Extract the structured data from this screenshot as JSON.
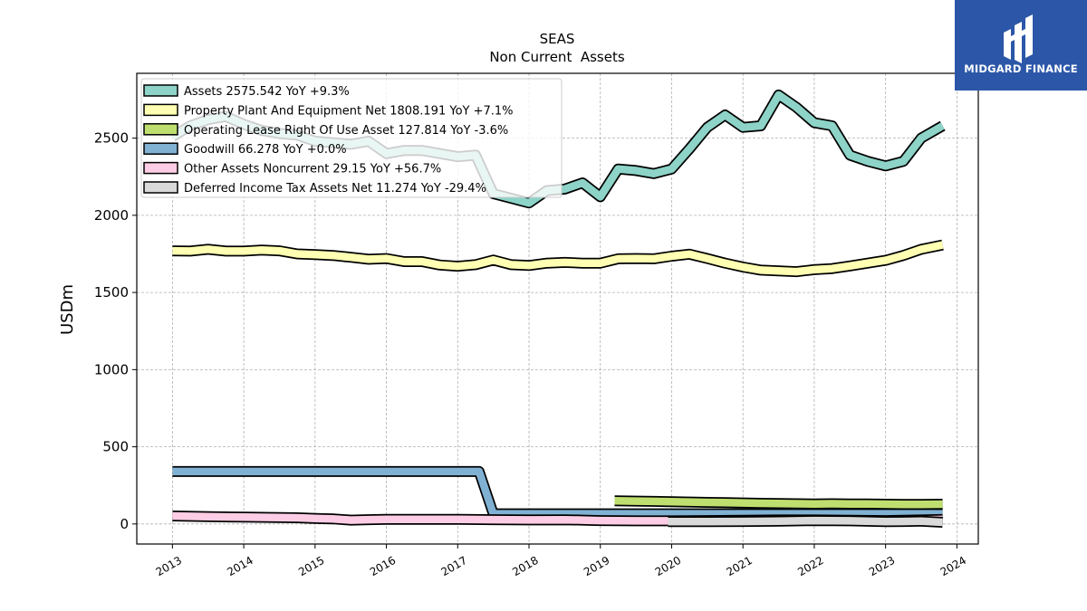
{
  "brand": {
    "name": "MIDGARD FINANCE",
    "color": "#2c57a8"
  },
  "chart_data": {
    "type": "line",
    "title": "SEAS",
    "subtitle": "Non Current  Assets",
    "ylabel": "USDm",
    "xlabel": "",
    "xlim": [
      2012.5,
      2024.3
    ],
    "ylim": [
      -130,
      2920
    ],
    "x_ticks": [
      2013,
      2014,
      2015,
      2016,
      2017,
      2018,
      2019,
      2020,
      2021,
      2022,
      2023,
      2024
    ],
    "y_ticks": [
      0,
      500,
      1000,
      1500,
      2000,
      2500
    ],
    "grid": true,
    "legend_position": "top-left",
    "series": [
      {
        "name": "Assets  2575.542 YoY +9.3%",
        "color": "#8dd3c7",
        "x": [
          2013.0,
          2013.25,
          2013.5,
          2013.75,
          2014.0,
          2014.25,
          2014.5,
          2014.75,
          2015.0,
          2015.25,
          2015.5,
          2015.75,
          2016.0,
          2016.25,
          2016.5,
          2016.75,
          2017.0,
          2017.25,
          2017.5,
          2017.75,
          2018.0,
          2018.25,
          2018.5,
          2018.75,
          2019.0,
          2019.25,
          2019.5,
          2019.75,
          2020.0,
          2020.25,
          2020.5,
          2020.75,
          2021.0,
          2021.25,
          2021.5,
          2021.75,
          2022.0,
          2022.25,
          2022.5,
          2022.75,
          2023.0,
          2023.25,
          2023.5,
          2023.8
        ],
        "values": [
          2510,
          2580,
          2620,
          2640,
          2590,
          2550,
          2530,
          2520,
          2480,
          2470,
          2460,
          2480,
          2400,
          2420,
          2420,
          2400,
          2380,
          2390,
          2140,
          2110,
          2080,
          2160,
          2170,
          2210,
          2120,
          2300,
          2290,
          2270,
          2300,
          2430,
          2570,
          2650,
          2570,
          2580,
          2780,
          2700,
          2600,
          2580,
          2390,
          2350,
          2320,
          2350,
          2500,
          2580
        ]
      },
      {
        "name": "Property Plant And Equipment Net  1808.191 YoY +7.1%",
        "color": "#ffffb3",
        "x": [
          2013.0,
          2013.25,
          2013.5,
          2013.75,
          2014.0,
          2014.25,
          2014.5,
          2014.75,
          2015.0,
          2015.25,
          2015.5,
          2015.75,
          2016.0,
          2016.25,
          2016.5,
          2016.75,
          2017.0,
          2017.25,
          2017.5,
          2017.75,
          2018.0,
          2018.25,
          2018.5,
          2018.75,
          2019.0,
          2019.25,
          2019.5,
          2019.75,
          2020.0,
          2020.25,
          2020.5,
          2020.75,
          2021.0,
          2021.25,
          2021.5,
          2021.75,
          2022.0,
          2022.25,
          2022.5,
          2022.75,
          2023.0,
          2023.25,
          2023.5,
          2023.8
        ],
        "values": [
          1770,
          1768,
          1780,
          1768,
          1768,
          1775,
          1770,
          1750,
          1745,
          1740,
          1728,
          1715,
          1720,
          1700,
          1700,
          1678,
          1670,
          1680,
          1710,
          1680,
          1675,
          1690,
          1695,
          1690,
          1690,
          1718,
          1720,
          1718,
          1735,
          1748,
          1720,
          1690,
          1665,
          1645,
          1640,
          1635,
          1648,
          1655,
          1672,
          1690,
          1708,
          1740,
          1780,
          1808
        ]
      },
      {
        "name": "Operating Lease Right Of Use Asset  127.814 YoY -3.6%",
        "color": "#bedf6f",
        "x": [
          2019.2,
          2019.5,
          2019.75,
          2020.0,
          2020.25,
          2020.5,
          2020.75,
          2021.0,
          2021.25,
          2021.5,
          2021.75,
          2022.0,
          2022.25,
          2022.5,
          2022.75,
          2023.0,
          2023.25,
          2023.5,
          2023.8
        ],
        "values": [
          150,
          148,
          146,
          144,
          142,
          140,
          138,
          136,
          134,
          132,
          131,
          130,
          131,
          130,
          129,
          128,
          127,
          127,
          128
        ]
      },
      {
        "name": "Goodwill  66.278 YoY +0.0%",
        "color": "#80b1d3",
        "x": [
          2013.0,
          2017.3,
          2017.5,
          2023.8
        ],
        "values": [
          340,
          340,
          66,
          66
        ]
      },
      {
        "name": "Other Assets Noncurrent  29.15 YoY +56.7%",
        "color": "#fccde5",
        "x": [
          2013.0,
          2013.5,
          2014.0,
          2014.5,
          2014.75,
          2015.0,
          2015.25,
          2015.5,
          2015.75,
          2016.0,
          2016.5,
          2017.0,
          2017.5,
          2018.0,
          2018.5,
          2018.75,
          2019.0,
          2019.5,
          2020.0,
          2020.5,
          2021.0,
          2021.5,
          2022.0,
          2022.5,
          2023.0,
          2023.5,
          2023.8
        ],
        "values": [
          52,
          48,
          44,
          42,
          40,
          36,
          33,
          25,
          28,
          30,
          30,
          30,
          28,
          26,
          27,
          25,
          22,
          20,
          20,
          22,
          24,
          26,
          26,
          24,
          22,
          26,
          29
        ]
      },
      {
        "name": "Deferred Income Tax Assets Net  11.274 YoY -29.4%",
        "color": "#d9d9d9",
        "x": [
          2019.95,
          2020.5,
          2021.0,
          2021.5,
          2022.0,
          2022.5,
          2023.0,
          2023.25,
          2023.5,
          2023.8
        ],
        "values": [
          15,
          15,
          16,
          18,
          22,
          20,
          15,
          16,
          18,
          11
        ]
      }
    ]
  }
}
